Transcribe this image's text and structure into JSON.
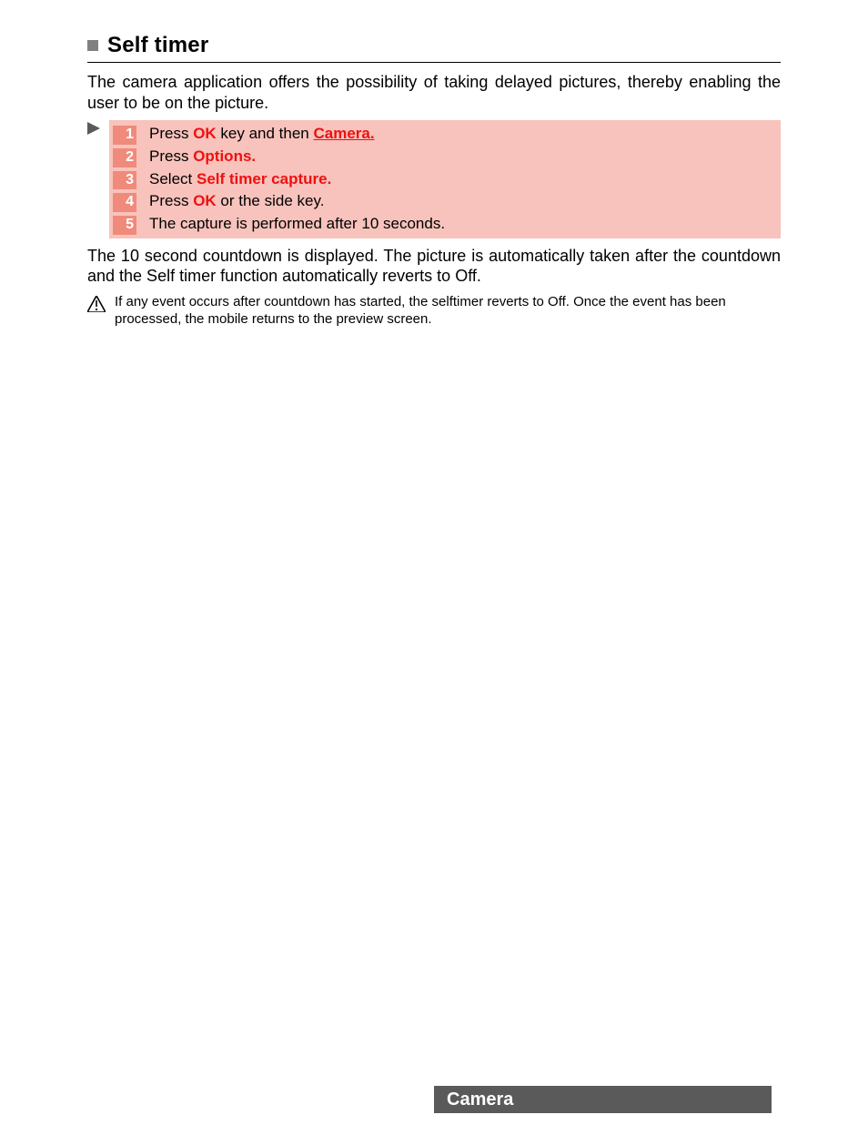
{
  "heading": "Self timer",
  "intro": "The camera application offers the possibility of taking delayed pictures, thereby enabling the user to be on the picture.",
  "steps": [
    {
      "num": "1",
      "parts": [
        {
          "t": "Press ",
          "cls": ""
        },
        {
          "t": "OK",
          "cls": "b-red"
        },
        {
          "t": " key and then ",
          "cls": ""
        },
        {
          "t": "Camera.",
          "cls": "b-red-u"
        }
      ]
    },
    {
      "num": "2",
      "parts": [
        {
          "t": "Press ",
          "cls": ""
        },
        {
          "t": "Options.",
          "cls": "b-red"
        }
      ]
    },
    {
      "num": "3",
      "parts": [
        {
          "t": "Select ",
          "cls": ""
        },
        {
          "t": "Self timer capture.",
          "cls": "b-red"
        }
      ]
    },
    {
      "num": "4",
      "parts": [
        {
          "t": "Press ",
          "cls": ""
        },
        {
          "t": "OK",
          "cls": "b-red"
        },
        {
          "t": " or the side key.",
          "cls": ""
        }
      ]
    },
    {
      "num": "5",
      "parts": [
        {
          "t": "The  capture is performed after 10 seconds.",
          "cls": ""
        }
      ]
    }
  ],
  "outro": "The 10 second countdown is displayed. The picture is automatically taken after the countdown and the Self timer function automatically reverts to Off.",
  "note": "If any event occurs after countdown has started, the selftimer reverts to Off. Once the event has been processed, the mobile returns to the preview screen.",
  "footer_label": "Camera",
  "colors": {
    "step_bg": "#f7c3bc",
    "num_bg": "#f08a7a",
    "red": "#ee1111",
    "footer_bg": "#5a5a5a",
    "heading_icon": "#808080"
  }
}
